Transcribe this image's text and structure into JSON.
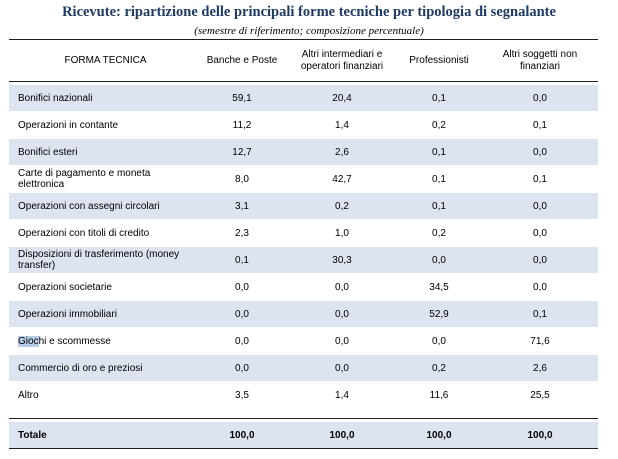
{
  "title": "Ricevute: ripartizione delle principali forme tecniche per tipologia di segnalante",
  "subtitle": "(semestre di riferimento; composizione percentuale)",
  "headers": {
    "forma": "FORMA TECNICA",
    "banche": "Banche e Poste",
    "altri_intermediari": "Altri intermediari e operatori finanziari",
    "professionisti": "Professionisti",
    "altri_soggetti": "Altri soggetti non finanziari"
  },
  "rows": [
    {
      "label": "Bonifici nazionali",
      "v": [
        "59,1",
        "20,4",
        "0,1",
        "0,0"
      ]
    },
    {
      "label": "Operazioni in contante",
      "v": [
        "11,2",
        "1,4",
        "0,2",
        "0,1"
      ]
    },
    {
      "label": "Bonifici esteri",
      "v": [
        "12,7",
        "2,6",
        "0,1",
        "0,0"
      ]
    },
    {
      "label": "Carte di pagamento e moneta elettronica",
      "v": [
        "8,0",
        "42,7",
        "0,1",
        "0,1"
      ]
    },
    {
      "label": "Operazioni con assegni circolari",
      "v": [
        "3,1",
        "0,2",
        "0,1",
        "0,0"
      ]
    },
    {
      "label": "Operazioni con titoli di credito",
      "v": [
        "2,3",
        "1,0",
        "0,2",
        "0,0"
      ]
    },
    {
      "label": "Disposizioni di trasferimento (money transfer)",
      "v": [
        "0,1",
        "30,3",
        "0,0",
        "0,0"
      ]
    },
    {
      "label": "Operazioni societarie",
      "v": [
        "0,0",
        "0,0",
        "34,5",
        "0,0"
      ]
    },
    {
      "label": "Operazioni immobiliari",
      "v": [
        "0,0",
        "0,0",
        "52,9",
        "0,1"
      ]
    },
    {
      "label_hl": "Gioc",
      "label_rest": "hi e scommesse",
      "v": [
        "0,0",
        "0,0",
        "0,0",
        "71,6"
      ]
    },
    {
      "label": "Commercio di oro e preziosi",
      "v": [
        "0,0",
        "0,0",
        "0,2",
        "2,6"
      ]
    },
    {
      "label": "Altro",
      "v": [
        "3,5",
        "1,4",
        "11,6",
        "25,5"
      ]
    }
  ],
  "total": {
    "label": "Totale",
    "v": [
      "100,0",
      "100,0",
      "100,0",
      "100,0"
    ]
  },
  "colors": {
    "title": "#1f3a63",
    "shade": "#dde3ef",
    "highlight": "#b7cde8"
  }
}
